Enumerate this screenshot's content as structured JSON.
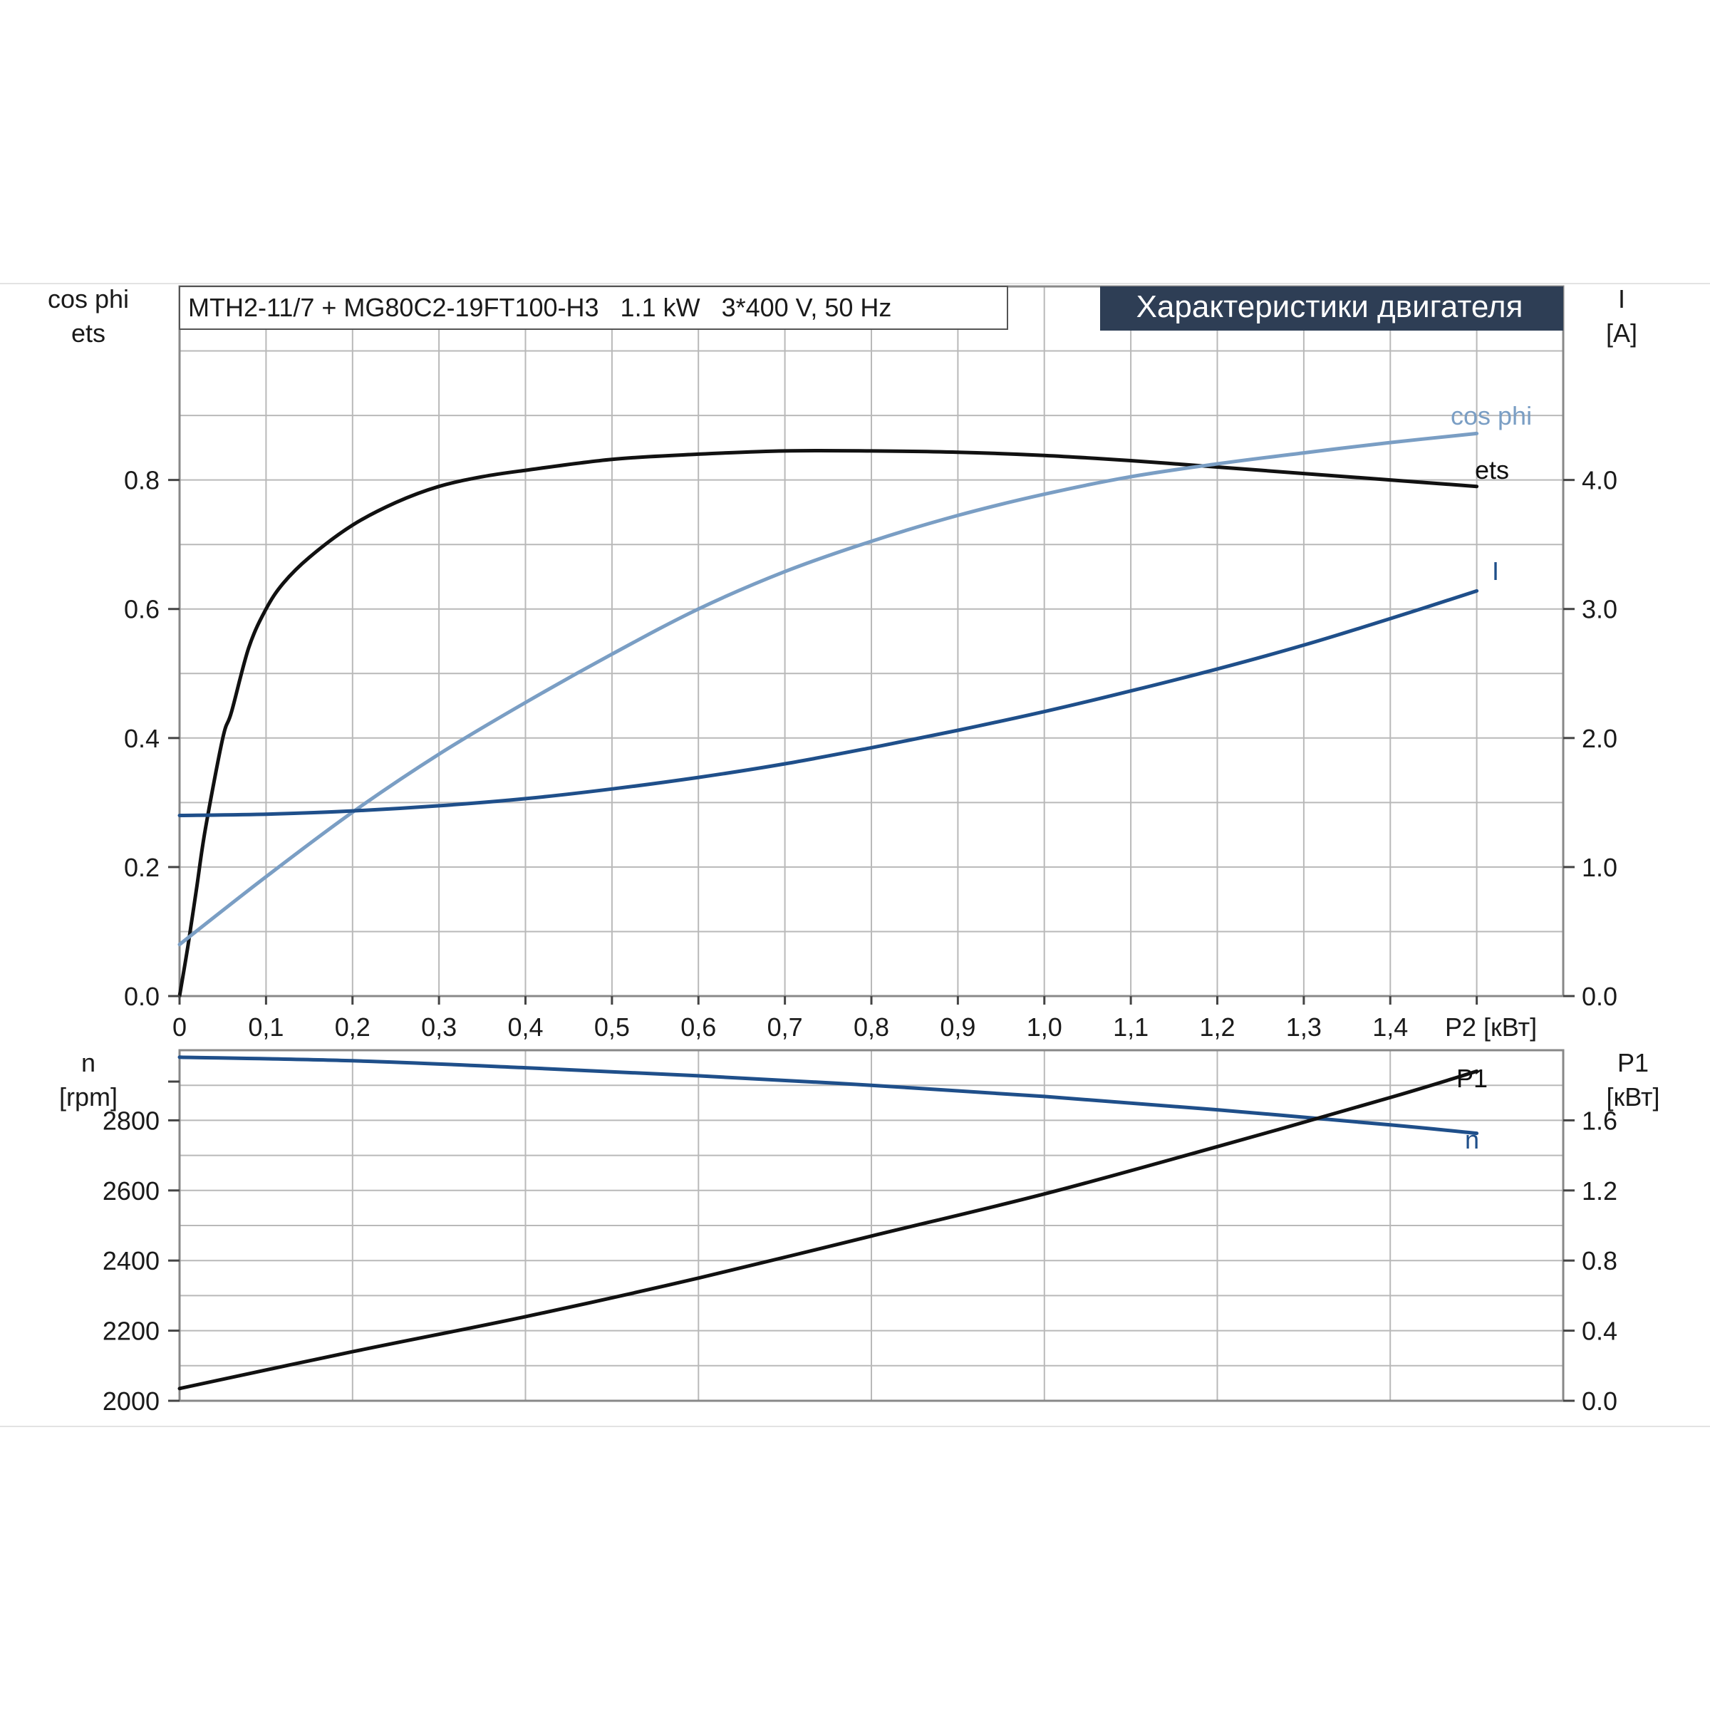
{
  "chart_data": [
    {
      "type": "line",
      "subtitle": "MTH2-11/7 + MG80C2-19FT100-H3   1.1 kW   3*400 V, 50 Hz",
      "title": "Характеристики двигателя",
      "left_axis_label_1": "cos phi",
      "left_axis_label_2": "ets",
      "right_axis_label_1": "I",
      "right_axis_label_2": "[A]",
      "x_unit_label": "P2 [кВт]",
      "x_ticks": [
        "0",
        "0,1",
        "0,2",
        "0,3",
        "0,4",
        "0,5",
        "0,6",
        "0,7",
        "0,8",
        "0,9",
        "1,0",
        "1,1",
        "1,2",
        "1,3",
        "1,4"
      ],
      "left_ticks": [
        "0.0",
        "0.2",
        "0.4",
        "0.6",
        "0.8"
      ],
      "right_ticks": [
        "0.0",
        "1.0",
        "2.0",
        "3.0",
        "4.0"
      ],
      "xlim": [
        0,
        1.6
      ],
      "ylim_left": [
        0,
        1.1
      ],
      "ylim_right": [
        0,
        5.5
      ],
      "grid": true,
      "series": [
        {
          "name": "ets",
          "axis": "left",
          "color": "#111111",
          "x": [
            0,
            0.01,
            0.02,
            0.03,
            0.05,
            0.06,
            0.08,
            0.1,
            0.12,
            0.15,
            0.2,
            0.25,
            0.3,
            0.35,
            0.4,
            0.5,
            0.6,
            0.7,
            0.8,
            0.9,
            1.0,
            1.1,
            1.2,
            1.3,
            1.4,
            1.5
          ],
          "y": [
            0,
            0.08,
            0.17,
            0.26,
            0.4,
            0.44,
            0.54,
            0.6,
            0.64,
            0.68,
            0.73,
            0.765,
            0.79,
            0.805,
            0.815,
            0.832,
            0.84,
            0.845,
            0.845,
            0.843,
            0.838,
            0.83,
            0.82,
            0.81,
            0.8,
            0.79
          ]
        },
        {
          "name": "cos phi",
          "axis": "left",
          "color": "#7a9ec4",
          "x": [
            0,
            0.1,
            0.2,
            0.3,
            0.4,
            0.5,
            0.6,
            0.7,
            0.8,
            0.9,
            1.0,
            1.1,
            1.2,
            1.3,
            1.4,
            1.5
          ],
          "y": [
            0.08,
            0.185,
            0.285,
            0.375,
            0.455,
            0.53,
            0.6,
            0.658,
            0.705,
            0.745,
            0.778,
            0.805,
            0.825,
            0.842,
            0.858,
            0.872
          ]
        },
        {
          "name": "I",
          "axis": "right",
          "color": "#1f4f8a",
          "x": [
            0,
            0.1,
            0.2,
            0.3,
            0.4,
            0.5,
            0.6,
            0.7,
            0.8,
            0.9,
            1.0,
            1.1,
            1.2,
            1.3,
            1.4,
            1.5
          ],
          "y": [
            1.4,
            1.41,
            1.435,
            1.475,
            1.53,
            1.605,
            1.695,
            1.8,
            1.925,
            2.06,
            2.205,
            2.365,
            2.535,
            2.72,
            2.925,
            3.14
          ]
        }
      ]
    },
    {
      "type": "line",
      "left_axis_label_1": "n",
      "left_axis_label_2": "[rpm]",
      "right_axis_label_1": "P1",
      "right_axis_label_2": "[кВт]",
      "left_ticks": [
        "2000",
        "2200",
        "2400",
        "2600",
        "2800"
      ],
      "right_ticks": [
        "0.0",
        "0.4",
        "0.8",
        "1.2",
        "1.6"
      ],
      "xlim": [
        0,
        1.6
      ],
      "ylim_left": [
        2000,
        3000
      ],
      "ylim_right": [
        0,
        2.0
      ],
      "grid": true,
      "series": [
        {
          "name": "n",
          "axis": "left",
          "color": "#1f4f8a",
          "x": [
            0,
            0.2,
            0.4,
            0.6,
            0.8,
            1.0,
            1.2,
            1.4,
            1.5
          ],
          "y": [
            2980,
            2970,
            2950,
            2927,
            2900,
            2868,
            2830,
            2787,
            2763
          ]
        },
        {
          "name": "P1",
          "axis": "right",
          "color": "#111111",
          "x": [
            0,
            0.2,
            0.4,
            0.6,
            0.8,
            1.0,
            1.2,
            1.4,
            1.5
          ],
          "y": [
            0.07,
            0.28,
            0.48,
            0.7,
            0.94,
            1.18,
            1.45,
            1.73,
            1.88
          ]
        }
      ]
    }
  ]
}
